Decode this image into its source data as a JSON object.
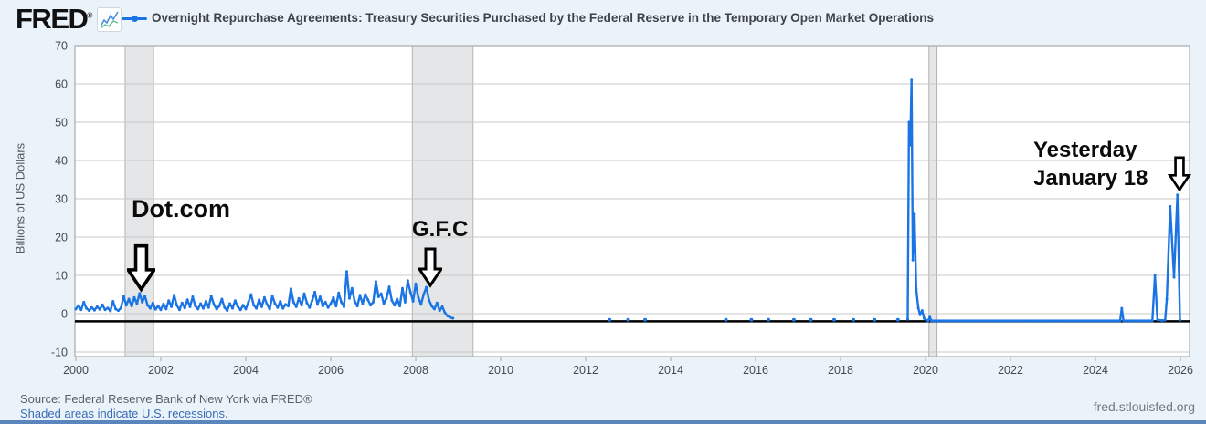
{
  "header": {
    "logo": "FRED",
    "logo_reg": "®",
    "title": "Overnight Repurchase Agreements: Treasury Securities Purchased by the Federal Reserve in the Temporary Open Market Operations",
    "legend_color": "#1b74e3"
  },
  "footer": {
    "source": "Source: Federal Reserve Bank of New York via FRED®",
    "recessions_note": "Shaded areas indicate U.S. recessions.",
    "watermark": "fred.stlouisfed.org"
  },
  "annotations": {
    "dotcom": "Dot.com",
    "gfc": "G.F.C",
    "yesterday_line1": "Yesterday",
    "yesterday_line2": "January 18"
  },
  "colors": {
    "line": "#1b74e3",
    "grid": "#c9c9c9",
    "plot_border": "#a9a9a9",
    "band_fill": "#e4e6e8",
    "band_edge": "#b3b3b3",
    "zero_line": "#000000",
    "background": "#eaf2fa",
    "plot_bg": "#ffffff",
    "axis_text": "#45494e"
  },
  "chart_data": {
    "type": "line",
    "title": "Overnight Repurchase Agreements: Treasury Securities Purchased by the Federal Reserve in the Temporary Open Market Operations",
    "xlabel": "",
    "ylabel": "Billions of US Dollars",
    "x_range": [
      1999.978,
      2026.215
    ],
    "y_range": [
      -11.2,
      70
    ],
    "x_ticks": [
      2000,
      2002,
      2004,
      2006,
      2008,
      2010,
      2012,
      2014,
      2016,
      2018,
      2020,
      2022,
      2024,
      2026
    ],
    "y_ticks": [
      70,
      60,
      50,
      40,
      30,
      20,
      10,
      0,
      -10
    ],
    "grid": true,
    "legend_position": "top",
    "zero_line_value": -2.0,
    "recessions": [
      {
        "label": "2001 recession",
        "start": 2001.16,
        "end": 2001.83
      },
      {
        "label": "2008-09 recession",
        "start": 2007.92,
        "end": 2009.35
      },
      {
        "label": "2020 recession",
        "start": 2020.08,
        "end": 2020.27
      }
    ],
    "series": [
      {
        "name": "repo-operations-2000-2008",
        "mode": "line+markers",
        "sampled": {
          "start": 2000.0,
          "step": 0.0625,
          "values": [
            1.2,
            2.1,
            1.0,
            3.0,
            1.4,
            0.8,
            1.6,
            0.9,
            1.8,
            1.1,
            2.3,
            1.0,
            1.5,
            0.7,
            3.2,
            1.2,
            0.8,
            1.5,
            4.5,
            2.2,
            3.8,
            2.0,
            4.2,
            2.6,
            5.3,
            3.0,
            4.6,
            2.2,
            1.4,
            2.8,
            1.1,
            2.0,
            1.0,
            2.5,
            1.2,
            3.4,
            1.8,
            4.8,
            2.2,
            1.0,
            2.8,
            1.5,
            3.6,
            1.8,
            4.4,
            2.0,
            1.2,
            2.6,
            1.4,
            3.2,
            1.6,
            4.6,
            2.4,
            1.2,
            2.0,
            3.8,
            1.6,
            0.8,
            2.6,
            1.4,
            3.4,
            1.8,
            1.0,
            2.2,
            1.2,
            3.0,
            5.0,
            2.2,
            1.4,
            3.6,
            1.8,
            4.2,
            2.4,
            1.2,
            4.6,
            2.6,
            1.6,
            3.2,
            1.4,
            2.4,
            2.0,
            6.5,
            3.0,
            1.8,
            4.0,
            2.2,
            5.2,
            2.8,
            1.6,
            3.4,
            5.6,
            2.4,
            4.4,
            2.0,
            3.0,
            1.6,
            2.6,
            4.2,
            2.0,
            5.4,
            3.0,
            1.8,
            11.0,
            4.0,
            6.6,
            3.2,
            2.0,
            4.8,
            2.6,
            5.0,
            3.6,
            2.2,
            3.0,
            8.4,
            4.4,
            5.2,
            2.6,
            4.0,
            7.0,
            3.4,
            2.2,
            3.8,
            2.0,
            6.6,
            3.0,
            8.6,
            5.6,
            3.2,
            7.8,
            4.2,
            2.4,
            5.0,
            6.9,
            3.6,
            2.0,
            1.2,
            2.8,
            0.8,
            1.8,
            0.2,
            -0.6,
            -1.0,
            -1.2
          ]
        }
      },
      {
        "name": "sporadic-operations-2012-2019",
        "mode": "markers",
        "points": [
          [
            2012.56,
            -1.6
          ],
          [
            2013.0,
            -1.6
          ],
          [
            2013.4,
            -1.6
          ],
          [
            2015.3,
            -1.6
          ],
          [
            2015.9,
            -1.6
          ],
          [
            2016.3,
            -1.6
          ],
          [
            2016.9,
            -1.6
          ],
          [
            2017.3,
            -1.6
          ],
          [
            2017.85,
            -1.6
          ],
          [
            2018.3,
            -1.6
          ],
          [
            2018.8,
            -1.6
          ],
          [
            2019.35,
            -1.6
          ]
        ]
      },
      {
        "name": "sept-2019-repo-spike",
        "mode": "line+markers",
        "points": [
          [
            2019.58,
            -1.5
          ],
          [
            2019.61,
            50
          ],
          [
            2019.64,
            44
          ],
          [
            2019.67,
            61
          ],
          [
            2019.7,
            14
          ],
          [
            2019.74,
            26
          ],
          [
            2019.78,
            6.5
          ],
          [
            2019.83,
            1.5
          ],
          [
            2019.87,
            -0.3
          ],
          [
            2019.92,
            0.8
          ],
          [
            2019.97,
            -1.3
          ],
          [
            2020.04,
            -1.8
          ]
        ]
      },
      {
        "name": "standing-facility-2020-2026",
        "mode": "line+markers",
        "flat": {
          "start": 2020.06,
          "end": 2025.3,
          "step": 0.04,
          "value": -1.9
        },
        "overrides": [
          [
            2020.1,
            -0.9
          ],
          [
            2024.62,
            1.4
          ]
        ],
        "tail": [
          [
            2025.34,
            -1.9
          ],
          [
            2025.4,
            10
          ],
          [
            2025.46,
            -1.6
          ],
          [
            2025.56,
            -1.8
          ],
          [
            2025.64,
            -1.7
          ],
          [
            2025.68,
            3.8
          ],
          [
            2025.76,
            28
          ],
          [
            2025.85,
            9.5
          ],
          [
            2025.93,
            31
          ],
          [
            2025.99,
            -1.7
          ]
        ]
      }
    ]
  }
}
